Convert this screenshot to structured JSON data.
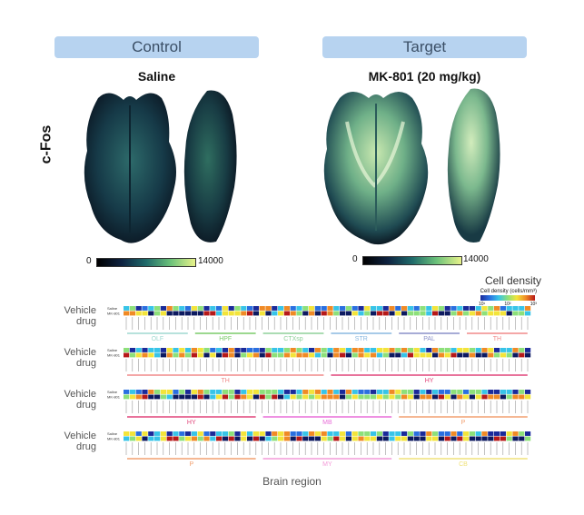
{
  "headers": {
    "control": "Control",
    "target": "Target"
  },
  "conditions": {
    "left": "Saline",
    "right": "MK-801 (20 mg/kg)"
  },
  "stain_label": "c-Fos",
  "colorbar": {
    "min": "0",
    "max": "14000"
  },
  "legend": {
    "title": "Cell density",
    "subtitle": "Cell density (cells/mm³)",
    "ticks": [
      "10¹",
      "10²",
      "10³"
    ]
  },
  "rows": {
    "vehicle": "Vehicle",
    "drug": "drug",
    "saline_tag": "Saline",
    "mk_tag": "MK-801"
  },
  "groups": [
    [
      "OLF",
      "HPF",
      "CTXsp",
      "STR",
      "PAL",
      "TH"
    ],
    [
      "TH",
      "HY"
    ],
    [
      "HY",
      "MB",
      "P"
    ],
    [
      "P",
      "MY",
      "CB"
    ]
  ],
  "group_colors": {
    "OLF": "#9fd9d0",
    "HPF": "#7ccb6a",
    "CTXsp": "#8fd09a",
    "STR": "#8ab8e0",
    "PAL": "#8a90c8",
    "TH": "#f08a8a",
    "HY": "#e0457a",
    "MB": "#e86fd8",
    "P": "#f2a070",
    "MY": "#f49ad8",
    "CB": "#f0e27a"
  },
  "x_axis_label": "Brain region"
}
